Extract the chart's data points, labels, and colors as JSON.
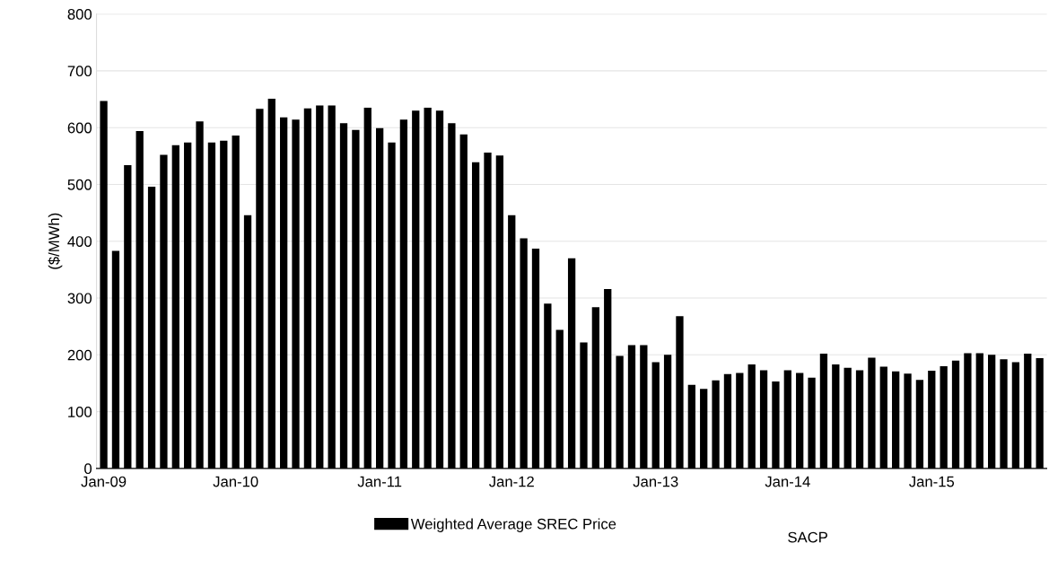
{
  "chart_data": {
    "type": "bar",
    "ylabel": "($/MWh)",
    "categories": [
      "Jan-09",
      null,
      null,
      null,
      null,
      null,
      null,
      null,
      null,
      null,
      null,
      "Jan-10",
      null,
      null,
      null,
      null,
      null,
      null,
      null,
      null,
      null,
      null,
      null,
      "Jan-11",
      null,
      null,
      null,
      null,
      null,
      null,
      null,
      null,
      null,
      null,
      "Jan-12",
      null,
      null,
      null,
      null,
      null,
      null,
      null,
      null,
      null,
      null,
      null,
      "Jan-13",
      null,
      null,
      null,
      null,
      null,
      null,
      null,
      null,
      null,
      null,
      "Jan-14",
      null,
      null,
      null,
      null,
      null,
      null,
      null,
      null,
      null,
      null,
      null,
      "Jan-15",
      null,
      null,
      null,
      null,
      null,
      null,
      null,
      null,
      null
    ],
    "series": [
      {
        "name": "Weighted Average SREC Price",
        "color": "#000000",
        "values": [
          647,
          383,
          534,
          594,
          496,
          552,
          569,
          574,
          611,
          574,
          577,
          586,
          446,
          633,
          651,
          618,
          614,
          634,
          639,
          639,
          608,
          596,
          635,
          599,
          574,
          614,
          630,
          635,
          630,
          608,
          588,
          539,
          556,
          551,
          446,
          405,
          387,
          290,
          244,
          370,
          222,
          284,
          316,
          198,
          217,
          217,
          187,
          200,
          268,
          147,
          140,
          155,
          166,
          168,
          183,
          173,
          153,
          173,
          168,
          160,
          202,
          183,
          177,
          173,
          195,
          179,
          171,
          167,
          156,
          172,
          180,
          190,
          203,
          203,
          200,
          192,
          187,
          202,
          194
        ]
      }
    ],
    "ylim": [
      0,
      800
    ],
    "yticks": [
      0,
      100,
      200,
      300,
      400,
      500,
      600,
      700,
      800
    ],
    "grid": "y",
    "legend": "bottom",
    "annotations": [
      "SACP"
    ]
  }
}
